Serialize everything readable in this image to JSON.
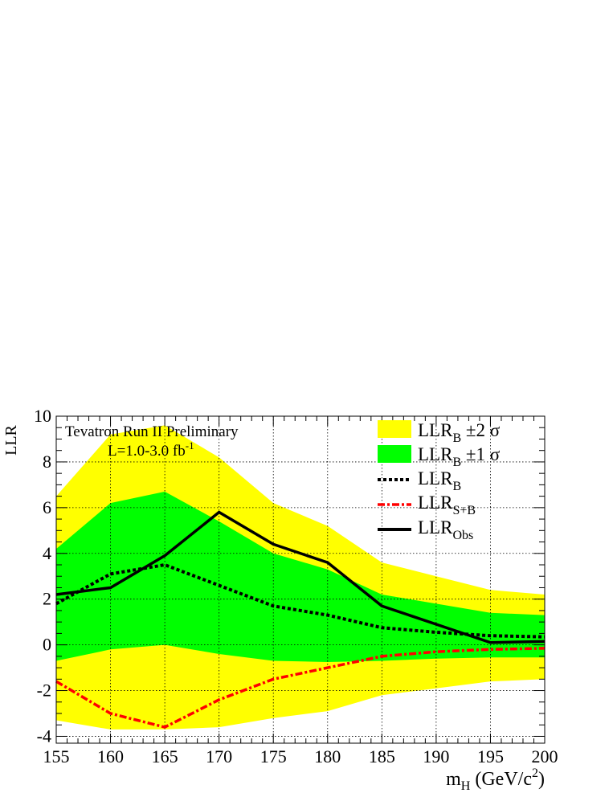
{
  "chart_data": {
    "type": "line",
    "title": "",
    "annotation": {
      "line1": "Tevatron Run II Preliminary",
      "line2_main": "L=1.0-3.0 fb",
      "line2_sup": "-1"
    },
    "ylabel": "LLR",
    "xlabel": {
      "main": "m",
      "sub": "H",
      "units_pre": " (GeV/c",
      "units_sup": "2",
      "units_post": ")"
    },
    "xlim": [
      155,
      200
    ],
    "ylim": [
      -4.3,
      10
    ],
    "xticks": [
      155,
      160,
      165,
      170,
      175,
      180,
      185,
      190,
      195,
      200
    ],
    "xtick_labels": [
      "155",
      "160",
      "165",
      "170",
      "175",
      "180",
      "185",
      "190",
      "195",
      "200"
    ],
    "yticks": [
      -4,
      -2,
      0,
      2,
      4,
      6,
      8,
      10
    ],
    "ytick_labels": [
      "-4",
      "-2",
      "0",
      "2",
      "4",
      "6",
      "8",
      "10"
    ],
    "grid": true,
    "legend_position": "top-right",
    "x": [
      155,
      160,
      165,
      170,
      175,
      180,
      185,
      190,
      195,
      200
    ],
    "bands": [
      {
        "id": "two_sigma",
        "color": "#ffff00",
        "upper": [
          6.5,
          9.2,
          9.6,
          8.2,
          6.2,
          5.2,
          3.6,
          3.0,
          2.4,
          2.2
        ],
        "lower": [
          -3.3,
          -3.7,
          -3.7,
          -3.6,
          -3.2,
          -2.9,
          -2.2,
          -1.9,
          -1.6,
          -1.5
        ]
      },
      {
        "id": "one_sigma",
        "color": "#00ff00",
        "upper": [
          4.2,
          6.2,
          6.7,
          5.4,
          4.0,
          3.3,
          2.2,
          1.8,
          1.4,
          1.3
        ],
        "lower": [
          -0.7,
          -0.2,
          0.0,
          -0.4,
          -0.7,
          -0.75,
          -0.7,
          -0.6,
          -0.55,
          -0.55
        ]
      }
    ],
    "series": [
      {
        "id": "llr_b",
        "values": [
          1.8,
          3.1,
          3.5,
          2.6,
          1.7,
          1.3,
          0.75,
          0.55,
          0.4,
          0.35
        ],
        "color": "#000000",
        "style": "dotted"
      },
      {
        "id": "llr_sb",
        "values": [
          -1.6,
          -3.0,
          -3.6,
          -2.4,
          -1.5,
          -1.0,
          -0.5,
          -0.3,
          -0.2,
          -0.15
        ],
        "color": "#ff0000",
        "style": "dash-dot"
      },
      {
        "id": "llr_obs",
        "values": [
          2.2,
          2.5,
          3.9,
          5.8,
          4.4,
          3.6,
          1.7,
          0.9,
          0.1,
          0.15
        ],
        "color": "#000000",
        "style": "solid"
      }
    ],
    "legend": [
      {
        "main": "LLR",
        "sub": "B",
        "suffix": "  ±2 σ"
      },
      {
        "main": "LLR",
        "sub": "B",
        "suffix": "  ±1 σ"
      },
      {
        "main": "LLR",
        "sub": "B",
        "suffix": ""
      },
      {
        "main": "LLR",
        "sub": "S+B",
        "suffix": ""
      },
      {
        "main": "LLR",
        "sub": "Obs",
        "suffix": ""
      }
    ]
  }
}
